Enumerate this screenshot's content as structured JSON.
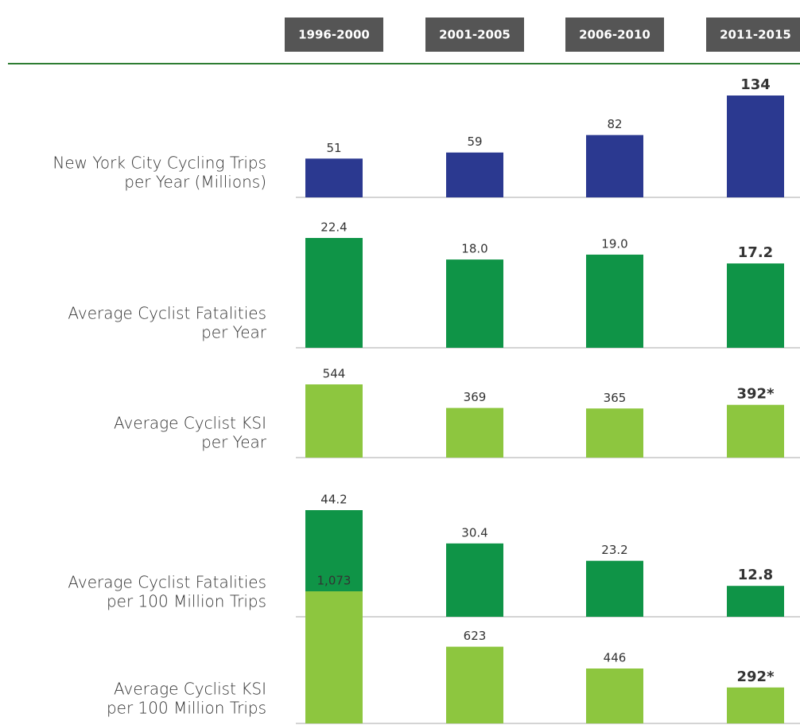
{
  "categories": [
    "1996-2000",
    "2001-2005",
    "2006-2010",
    "2011-2015"
  ],
  "chart_data": [
    {
      "type": "bar",
      "title": [
        "New York City Cycling Trips",
        "per Year (Millions)"
      ],
      "values": [
        51,
        59,
        82,
        134
      ],
      "color": "#2b3990"
    },
    {
      "type": "bar",
      "title": [
        "Average Cyclist Fatalities",
        "per Year"
      ],
      "values": [
        22.4,
        18.0,
        19.0,
        17.2
      ],
      "value_labels": [
        "22.4",
        "18.0",
        "19.0",
        "17.2"
      ],
      "color": "#0f9447"
    },
    {
      "type": "bar",
      "title": [
        "Average Cyclist KSI",
        "per Year"
      ],
      "values": [
        544,
        369,
        365,
        392
      ],
      "value_labels": [
        "544",
        "369",
        "365",
        "392*"
      ],
      "color": "#8dc63f"
    },
    {
      "type": "bar",
      "title": [
        "Average Cyclist Fatalities",
        "per 100 Million Trips"
      ],
      "values": [
        44.2,
        30.4,
        23.2,
        12.8
      ],
      "color": "#0f9447"
    },
    {
      "type": "bar",
      "title": [
        "Average Cyclist KSI",
        "per 100 Million Trips"
      ],
      "values": [
        1073,
        623,
        446,
        292
      ],
      "value_labels": [
        "1,073",
        "623",
        "446",
        "292*"
      ],
      "color": "#8dc63f"
    }
  ]
}
